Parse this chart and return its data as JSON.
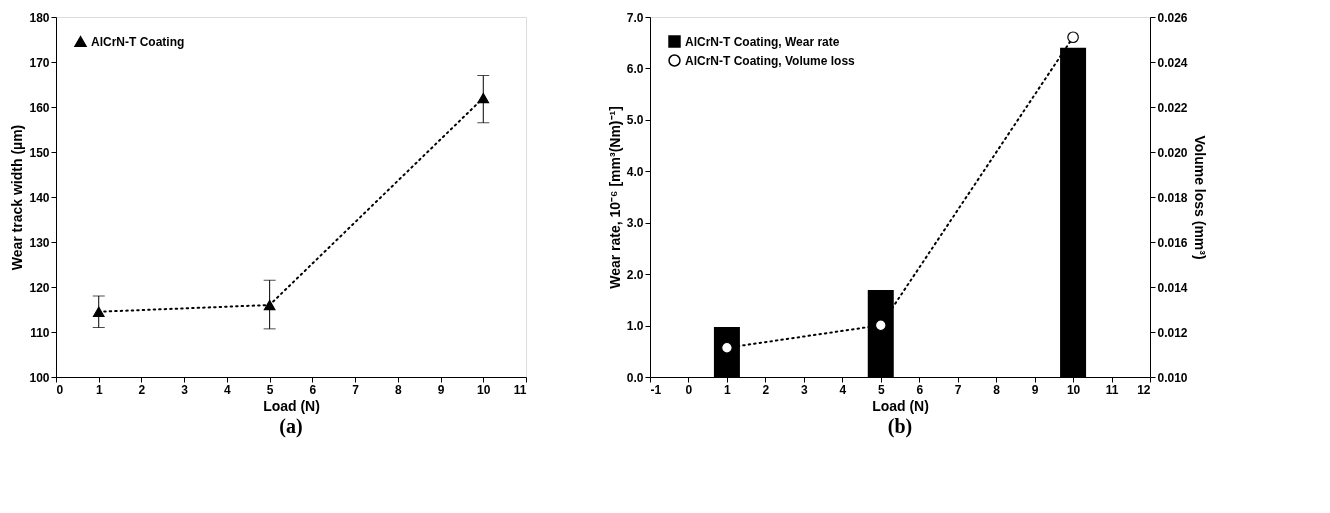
{
  "chart_data": [
    {
      "type": "line",
      "title": "(a)",
      "xlabel": "Load (N)",
      "ylabel": "Wear track width (µm)",
      "x": [
        1,
        5,
        10
      ],
      "series": [
        {
          "name": "AlCrN-T Coating",
          "color": "#000000",
          "values": [
            114.5,
            116,
            162
          ],
          "errors": [
            [
              111,
              118
            ],
            [
              110.7,
              121.5
            ],
            [
              156.5,
              167
            ]
          ]
        }
      ],
      "xlim": [
        0,
        11
      ],
      "xticks": [
        0,
        1,
        2,
        3,
        4,
        5,
        6,
        7,
        8,
        9,
        10,
        11
      ],
      "ylim": [
        100,
        180
      ],
      "yticks": [
        100,
        110,
        120,
        130,
        140,
        150,
        160,
        170,
        180
      ],
      "marker": "triangle",
      "line_style": "dotted",
      "legend": "top left",
      "grid": false
    },
    {
      "type": "bar",
      "title": "(b)",
      "xlabel": "Load (N)",
      "ylabel": "Wear rate, 10⁻⁶ [mm³(Nm)⁻¹]",
      "y2label": "Volume loss (mm³)",
      "x": [
        1,
        5,
        10
      ],
      "series": [
        {
          "name": "AlCrN-T Coating, Wear rate",
          "type": "bar",
          "color": "#000000",
          "values": [
            0.97,
            1.69,
            6.4
          ]
        },
        {
          "name": "AlCrN-T Coating, Volume loss",
          "type": "line",
          "axis": "y2",
          "color": "#000000",
          "values": [
            0.0113,
            0.0123,
            0.0251
          ]
        }
      ],
      "xlim": [
        -1,
        12
      ],
      "xticks": [
        -1,
        0,
        1,
        2,
        3,
        4,
        5,
        6,
        7,
        8,
        9,
        10,
        11,
        12
      ],
      "ylim": [
        0,
        7
      ],
      "yticks": [
        {
          "value": 0,
          "label": "0.0"
        },
        {
          "value": 1,
          "label": "1.0"
        },
        {
          "value": 2,
          "label": "2.0"
        },
        {
          "value": 3,
          "label": "3.0"
        },
        {
          "value": 4,
          "label": "4.0"
        },
        {
          "value": 5,
          "label": "5.0"
        },
        {
          "value": 6,
          "label": "6.0"
        },
        {
          "value": 7,
          "label": "7.0"
        }
      ],
      "y2lim": [
        0.01,
        0.026
      ],
      "y2ticks": [
        {
          "value": 0.01,
          "label": "0.010"
        },
        {
          "value": 0.012,
          "label": "0.012"
        },
        {
          "value": 0.014,
          "label": "0.014"
        },
        {
          "value": 0.016,
          "label": "0.016"
        },
        {
          "value": 0.018,
          "label": "0.018"
        },
        {
          "value": 0.02,
          "label": "0.020"
        },
        {
          "value": 0.022,
          "label": "0.022"
        },
        {
          "value": 0.024,
          "label": "0.024"
        },
        {
          "value": 0.026,
          "label": "0.026"
        }
      ],
      "marker": "circle",
      "line_style": "dotted",
      "legend": "top left",
      "grid": false
    }
  ]
}
